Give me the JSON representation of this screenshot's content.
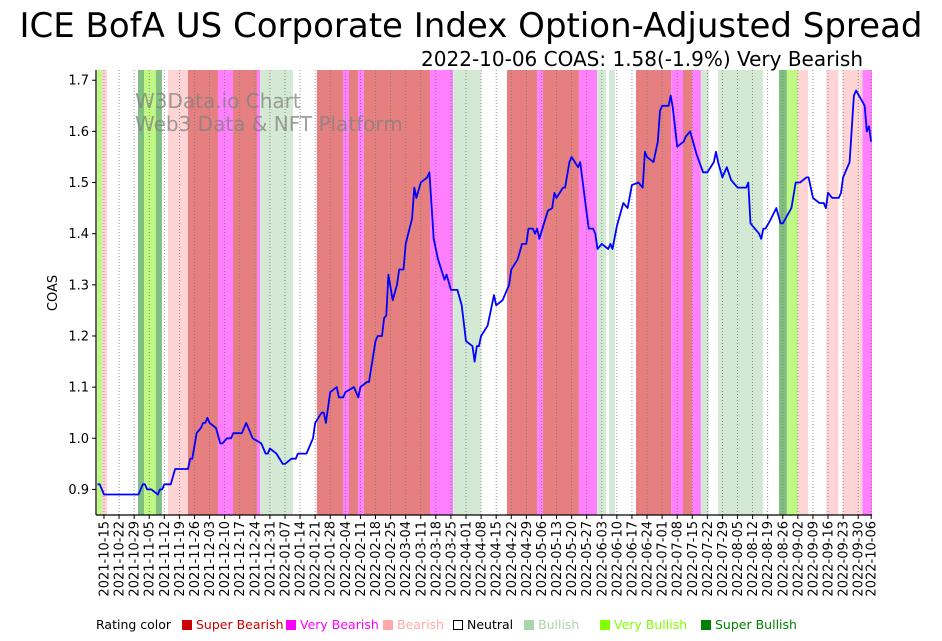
{
  "title": "ICE BofA US Corporate Index Option-Adjusted Spread",
  "subtitle": "2022-10-06 COAS: 1.58(-1.9%) Very Bearish",
  "watermark": [
    "W3Data.io Chart",
    "Web3 Data & NFT Platform"
  ],
  "legend": {
    "label": "Rating color",
    "items": [
      {
        "key": "super_bearish",
        "label": "Super Bearish",
        "color": "#cc0000"
      },
      {
        "key": "very_bearish",
        "label": "Very Bearish",
        "color": "#ff00ff"
      },
      {
        "key": "bearish",
        "label": "Bearish",
        "color": "#ffaaaa"
      },
      {
        "key": "neutral",
        "label": "Neutral",
        "color": "#ffffff"
      },
      {
        "key": "bullish",
        "label": "Bullish",
        "color": "#aad4aa"
      },
      {
        "key": "very_bullish",
        "label": "Very Bullish",
        "color": "#7fff00"
      },
      {
        "key": "super_bullish",
        "label": "Super Bullish",
        "color": "#008000"
      }
    ]
  },
  "chart_data": {
    "type": "line",
    "title": "ICE BofA US Corporate Index Option-Adjusted Spread",
    "xlabel": "",
    "ylabel": "COAS",
    "x_unit": "days since 2021-10-15",
    "xlim": [
      -3.7,
      356.4
    ],
    "ylim": [
      0.85,
      1.72
    ],
    "yticks": [
      0.9,
      1.0,
      1.1,
      1.2,
      1.3,
      1.4,
      1.5,
      1.6,
      1.7
    ],
    "ytick_labels": [
      "0.9",
      "1.0",
      "1.1",
      "1.2",
      "1.3",
      "1.4",
      "1.5",
      "1.6",
      "1.7"
    ],
    "xtick_days": [
      0,
      7,
      14,
      21,
      28,
      35,
      42,
      49,
      56,
      63,
      70,
      77,
      84,
      91,
      98,
      105,
      112,
      119,
      126,
      133,
      140,
      147,
      154,
      161,
      168,
      175,
      182,
      189,
      196,
      203,
      210,
      217,
      224,
      231,
      238,
      245,
      252,
      259,
      266,
      273,
      280,
      287,
      294,
      301,
      308,
      315,
      322,
      329,
      336,
      343,
      350,
      356
    ],
    "xtick_labels": [
      "2021-10-15",
      "2021-10-22",
      "2021-10-29",
      "2021-11-05",
      "2021-11-12",
      "2021-11-19",
      "2021-11-26",
      "2021-12-03",
      "2021-12-10",
      "2021-12-17",
      "2021-12-24",
      "2021-12-31",
      "2022-01-07",
      "2022-01-14",
      "2022-01-21",
      "2022-01-28",
      "2022-02-04",
      "2022-02-11",
      "2022-02-18",
      "2022-02-25",
      "2022-03-04",
      "2022-03-11",
      "2022-03-18",
      "2022-03-25",
      "2022-04-01",
      "2022-04-08",
      "2022-04-15",
      "2022-04-22",
      "2022-04-29",
      "2022-05-06",
      "2022-05-13",
      "2022-05-20",
      "2022-05-27",
      "2022-06-03",
      "2022-06-10",
      "2022-06-17",
      "2022-06-24",
      "2022-07-01",
      "2022-07-08",
      "2022-07-15",
      "2022-07-22",
      "2022-07-29",
      "2022-08-05",
      "2022-08-12",
      "2022-08-19",
      "2022-08-26",
      "2022-09-02",
      "2022-09-09",
      "2022-09-16",
      "2022-09-23",
      "2022-09-30",
      "2022-10-06"
    ],
    "grid": "vertical dotted",
    "series": [
      {
        "name": "COAS",
        "color": "#0000ff",
        "x": [
          -3,
          -2,
          0,
          16,
          18,
          19,
          20,
          22,
          25,
          26,
          27,
          28,
          31,
          33,
          39,
          40,
          41,
          43,
          45,
          46,
          47,
          48,
          49,
          52,
          54,
          55,
          57,
          59,
          60,
          64,
          66,
          69,
          73,
          75,
          76,
          77,
          80,
          83,
          84,
          87,
          89,
          90,
          94,
          97,
          98,
          101,
          102,
          103,
          105,
          108,
          109,
          111,
          112,
          116,
          118,
          119,
          122,
          123,
          126,
          127,
          129,
          130,
          131,
          132,
          134,
          136,
          137,
          139,
          140,
          143,
          144,
          145,
          147,
          150,
          151,
          153,
          155,
          158,
          159,
          161,
          164,
          166,
          168,
          171,
          172,
          173,
          174,
          175,
          178,
          181,
          182,
          185,
          188,
          189,
          192,
          194,
          196,
          197,
          199,
          200,
          201,
          202,
          206,
          208,
          209,
          210,
          213,
          214,
          216,
          217,
          220,
          221,
          224,
          225,
          227,
          228,
          229,
          231,
          234,
          235,
          236,
          238,
          241,
          243,
          245,
          248,
          250,
          251,
          252,
          255,
          257,
          258,
          259,
          262,
          263,
          264,
          266,
          269,
          270,
          272,
          273,
          275,
          278,
          280,
          283,
          284,
          285,
          287,
          289,
          291,
          294,
          298,
          299,
          300,
          302,
          304,
          305,
          306,
          307,
          309,
          312,
          314,
          315,
          319,
          321,
          323,
          326,
          327,
          329,
          332,
          334,
          335,
          336,
          338,
          341,
          342,
          343,
          346,
          348,
          349,
          353,
          354,
          355,
          356
        ],
        "y": [
          0.91,
          0.91,
          0.89,
          0.89,
          0.91,
          0.91,
          0.9,
          0.9,
          0.89,
          0.9,
          0.9,
          0.91,
          0.91,
          0.94,
          0.94,
          0.96,
          0.96,
          1.01,
          1.02,
          1.03,
          1.03,
          1.04,
          1.03,
          1.02,
          0.99,
          0.99,
          1.0,
          1.0,
          1.01,
          1.01,
          1.03,
          1.0,
          0.99,
          0.97,
          0.97,
          0.98,
          0.97,
          0.95,
          0.95,
          0.96,
          0.96,
          0.97,
          0.97,
          1.0,
          1.03,
          1.05,
          1.05,
          1.03,
          1.09,
          1.1,
          1.08,
          1.08,
          1.09,
          1.1,
          1.08,
          1.1,
          1.11,
          1.11,
          1.19,
          1.2,
          1.2,
          1.235,
          1.24,
          1.32,
          1.27,
          1.3,
          1.33,
          1.33,
          1.38,
          1.43,
          1.49,
          1.47,
          1.5,
          1.51,
          1.52,
          1.39,
          1.35,
          1.31,
          1.32,
          1.29,
          1.29,
          1.26,
          1.19,
          1.18,
          1.15,
          1.18,
          1.18,
          1.2,
          1.22,
          1.28,
          1.26,
          1.27,
          1.3,
          1.33,
          1.35,
          1.38,
          1.38,
          1.41,
          1.41,
          1.4,
          1.41,
          1.39,
          1.445,
          1.45,
          1.48,
          1.47,
          1.49,
          1.49,
          1.54,
          1.55,
          1.53,
          1.54,
          1.44,
          1.41,
          1.41,
          1.4,
          1.37,
          1.38,
          1.37,
          1.38,
          1.37,
          1.415,
          1.46,
          1.45,
          1.495,
          1.5,
          1.49,
          1.56,
          1.55,
          1.54,
          1.58,
          1.64,
          1.65,
          1.65,
          1.67,
          1.645,
          1.57,
          1.58,
          1.59,
          1.6,
          1.585,
          1.555,
          1.52,
          1.52,
          1.54,
          1.56,
          1.54,
          1.51,
          1.53,
          1.505,
          1.49,
          1.49,
          1.5,
          1.42,
          1.41,
          1.4,
          1.39,
          1.41,
          1.41,
          1.425,
          1.45,
          1.42,
          1.42,
          1.45,
          1.5,
          1.5,
          1.51,
          1.51,
          1.47,
          1.46,
          1.46,
          1.45,
          1.48,
          1.47,
          1.47,
          1.48,
          1.51,
          1.54,
          1.67,
          1.68,
          1.65,
          1.6,
          1.61,
          1.58
        ]
      }
    ],
    "rating_bands": [
      {
        "from": -3.2,
        "to": -0.9,
        "rating": "very_bullish"
      },
      {
        "from": -0.9,
        "to": 1.4,
        "rating": "bearish"
      },
      {
        "from": 15.8,
        "to": 18.6,
        "rating": "super_bullish"
      },
      {
        "from": 18.6,
        "to": 24.1,
        "rating": "very_bullish"
      },
      {
        "from": 24.1,
        "to": 26.9,
        "rating": "super_bullish"
      },
      {
        "from": 29.7,
        "to": 39.0,
        "rating": "bearish"
      },
      {
        "from": 39.0,
        "to": 52.9,
        "rating": "super_bearish"
      },
      {
        "from": 52.9,
        "to": 59.9,
        "rating": "very_bearish"
      },
      {
        "from": 59.9,
        "to": 71.0,
        "rating": "super_bearish"
      },
      {
        "from": 71.0,
        "to": 72.4,
        "rating": "very_bearish"
      },
      {
        "from": 72.4,
        "to": 87.7,
        "rating": "bullish"
      },
      {
        "from": 98.8,
        "to": 110.9,
        "rating": "super_bearish"
      },
      {
        "from": 110.9,
        "to": 113.7,
        "rating": "very_bearish"
      },
      {
        "from": 113.7,
        "to": 117.9,
        "rating": "super_bearish"
      },
      {
        "from": 117.9,
        "to": 120.6,
        "rating": "very_bearish"
      },
      {
        "from": 120.6,
        "to": 151.3,
        "rating": "super_bearish"
      },
      {
        "from": 151.3,
        "to": 162.0,
        "rating": "very_bearish"
      },
      {
        "from": 162.0,
        "to": 175.0,
        "rating": "bullish"
      },
      {
        "from": 187.0,
        "to": 201.0,
        "rating": "super_bearish"
      },
      {
        "from": 201.0,
        "to": 203.7,
        "rating": "very_bearish"
      },
      {
        "from": 203.7,
        "to": 220.4,
        "rating": "super_bearish"
      },
      {
        "from": 220.4,
        "to": 228.8,
        "rating": "very_bearish"
      },
      {
        "from": 228.8,
        "to": 233.0,
        "rating": "bullish"
      },
      {
        "from": 234.3,
        "to": 237.1,
        "rating": "bullish"
      },
      {
        "from": 246.9,
        "to": 263.2,
        "rating": "super_bearish"
      },
      {
        "from": 263.2,
        "to": 268.7,
        "rating": "very_bearish"
      },
      {
        "from": 268.7,
        "to": 272.9,
        "rating": "super_bearish"
      },
      {
        "from": 272.9,
        "to": 277.0,
        "rating": "very_bearish"
      },
      {
        "from": 277.0,
        "to": 280.7,
        "rating": "bullish"
      },
      {
        "from": 285.0,
        "to": 305.8,
        "rating": "bullish"
      },
      {
        "from": 313.2,
        "to": 316.9,
        "rating": "super_bullish"
      },
      {
        "from": 316.9,
        "to": 322.0,
        "rating": "very_bullish"
      },
      {
        "from": 322.0,
        "to": 326.7,
        "rating": "bearish"
      },
      {
        "from": 335.2,
        "to": 340.8,
        "rating": "bearish"
      },
      {
        "from": 342.7,
        "to": 352.0,
        "rating": "bearish"
      },
      {
        "from": 352.0,
        "to": 356.4,
        "rating": "very_bearish"
      }
    ],
    "band_colors": {
      "super_bearish": "#e67f7f",
      "very_bearish": "#ff80ff",
      "bearish": "#ffd4d4",
      "bullish": "#d4e9d4",
      "very_bullish": "#bff882",
      "super_bullish": "#80bf80"
    }
  }
}
